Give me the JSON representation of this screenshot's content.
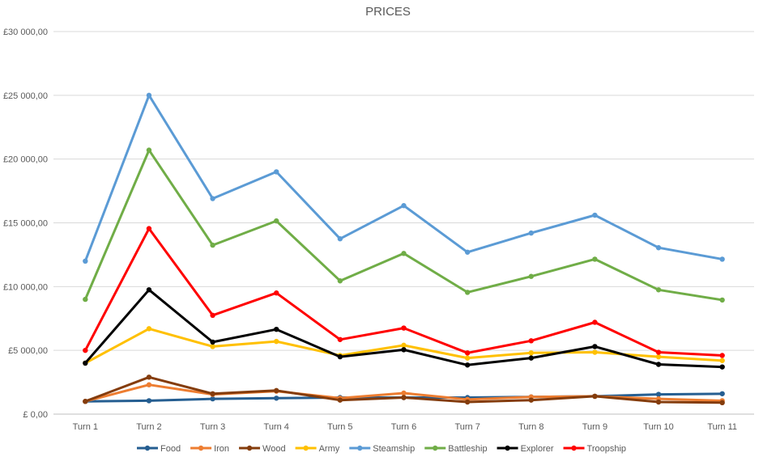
{
  "chart_data": {
    "type": "line",
    "title": "PRICES",
    "xlabel": "",
    "ylabel": "",
    "categories": [
      "Turn 1",
      "Turn 2",
      "Turn 3",
      "Turn 4",
      "Turn 5",
      "Turn 6",
      "Turn 7",
      "Turn 8",
      "Turn 9",
      "Turn 10",
      "Turn 11"
    ],
    "ylim": [
      0,
      30000
    ],
    "y_ticks": [
      0,
      5000,
      10000,
      15000,
      20000,
      25000,
      30000
    ],
    "y_tick_labels": [
      "£ 0,00",
      "£5 000,00",
      "£10 000,00",
      "£15 000,00",
      "£20 000,00",
      "£25 000,00",
      "£30 000,00"
    ],
    "grid": true,
    "legend": "bottom",
    "series": [
      {
        "name": "Food",
        "color": "#255e91",
        "values": [
          1000,
          1050,
          1200,
          1250,
          1300,
          1300,
          1300,
          1350,
          1400,
          1550,
          1600
        ]
      },
      {
        "name": "Iron",
        "color": "#ed7d31",
        "values": [
          1000,
          2300,
          1550,
          1800,
          1250,
          1650,
          1150,
          1350,
          1400,
          1200,
          1050
        ]
      },
      {
        "name": "Wood",
        "color": "#843c0c",
        "values": [
          1000,
          2900,
          1600,
          1850,
          1100,
          1300,
          950,
          1100,
          1400,
          950,
          900
        ]
      },
      {
        "name": "Army",
        "color": "#ffc000",
        "values": [
          4000,
          6700,
          5300,
          5700,
          4600,
          5400,
          4400,
          4800,
          4850,
          4500,
          4200
        ]
      },
      {
        "name": "Steamship",
        "color": "#5b9bd5",
        "values": [
          12000,
          25000,
          16900,
          19000,
          13750,
          16350,
          12700,
          14200,
          15600,
          13050,
          12150
        ]
      },
      {
        "name": "Battleship",
        "color": "#70ad47",
        "values": [
          9000,
          20700,
          13250,
          15150,
          10450,
          12600,
          9550,
          10800,
          12150,
          9750,
          8950
        ]
      },
      {
        "name": "Explorer",
        "color": "#000000",
        "values": [
          4000,
          9750,
          5650,
          6650,
          4500,
          5050,
          3850,
          4400,
          5300,
          3900,
          3700
        ]
      },
      {
        "name": "Troopship",
        "color": "#ff0000",
        "values": [
          5000,
          14550,
          7750,
          9500,
          5850,
          6750,
          4800,
          5750,
          7200,
          4850,
          4600
        ]
      }
    ]
  }
}
